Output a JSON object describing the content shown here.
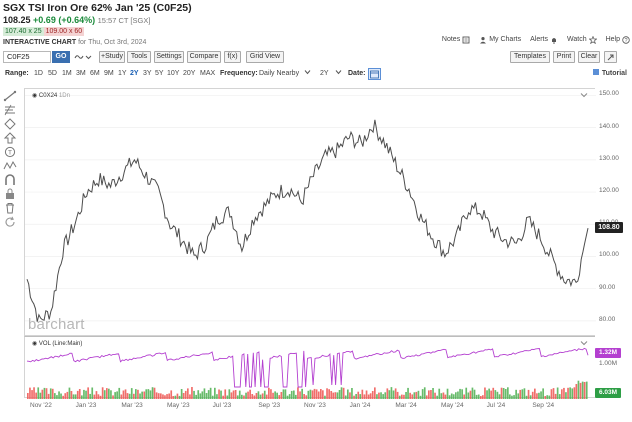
{
  "header": {
    "title": "SGX TSI Iron Ore 62% Jan '25 (C0F25)",
    "last": "108.25",
    "change": "+0.69 (+0.64%)",
    "time": "15:57 CT [SGX]",
    "bid": "107.40 x 25",
    "ask": "109.00 x 60",
    "chart_label": "INTERACTIVE CHART",
    "chart_date": "for Thu, Oct 3rd, 2024"
  },
  "top_links": [
    "Notes",
    "My Charts",
    "Alerts",
    "Watch",
    "Help"
  ],
  "toolbar": {
    "symbol_value": "C0F25",
    "go_label": "GO",
    "buttons": [
      "+Study",
      "Tools",
      "Settings",
      "Compare",
      "f(x)",
      "Grid View"
    ],
    "right_buttons": [
      "Templates",
      "Print",
      "Clear"
    ]
  },
  "range_bar": {
    "range_label": "Range:",
    "ranges": [
      "1D",
      "5D",
      "1M",
      "3M",
      "6M",
      "9M",
      "1Y",
      "2Y",
      "3Y",
      "5Y",
      "10Y",
      "20Y",
      "MAX"
    ],
    "active_range": "2Y",
    "frequency_label": "Frequency:",
    "frequency_value": "Daily Nearby",
    "period_value": "2Y",
    "date_label": "Date:",
    "tutorial_label": "Tutorial"
  },
  "chart": {
    "legend_symbol": "C0X24",
    "legend_timeframe": "1Dn",
    "watermark": "barchart",
    "last_price_label": "108.80",
    "colors": {
      "price_line": "#4d4d4d",
      "volume_line": "#b440d0",
      "last_badge": "#222222",
      "vol_up": "#4caf50",
      "vol_down": "#ef5350",
      "vol_badge": "#b440d0",
      "vol_badge2": "#2e9e46"
    }
  },
  "volume_panel": {
    "legend": "VOL (Line:Main)",
    "value_label": "1.32M",
    "axis_label": "1.00M",
    "last_volume_label": "6.03M"
  },
  "chart_data": {
    "type": "line",
    "x_ticks": [
      "Nov '22",
      "Jan '23",
      "Mar '23",
      "May '23",
      "Jul '23",
      "Sep '23",
      "Nov '23",
      "Jan '24",
      "Mar '24",
      "May '24",
      "Jul '24",
      "Sep '24"
    ],
    "y_ticks": [
      "150.00",
      "140.00",
      "130.00",
      "120.00",
      "110.00",
      "100.00",
      "90.00",
      "80.00"
    ],
    "ylim": [
      75,
      152
    ],
    "series": [
      {
        "points": [
          [
            "Oct '22",
            93
          ],
          [
            "Nov '22",
            80
          ],
          [
            "Nov '22",
            83
          ],
          [
            "Dec '22",
            102
          ],
          [
            "Dec '22",
            110
          ],
          [
            "Jan '23",
            120
          ],
          [
            "Jan '23",
            124
          ],
          [
            "Feb '23",
            122
          ],
          [
            "Feb '23",
            126
          ],
          [
            "Mar '23",
            130
          ],
          [
            "Mar '23",
            125
          ],
          [
            "Apr '23",
            120
          ],
          [
            "Apr '23",
            110
          ],
          [
            "May '23",
            105
          ],
          [
            "May '23",
            100
          ],
          [
            "Jun '23",
            104
          ],
          [
            "Jun '23",
            112
          ],
          [
            "Jul '23",
            114
          ],
          [
            "Jul '23",
            103
          ],
          [
            "Aug '23",
            112
          ],
          [
            "Aug '23",
            116
          ],
          [
            "Sep '23",
            120
          ],
          [
            "Sep '23",
            121
          ],
          [
            "Oct '23",
            117
          ],
          [
            "Oct '23",
            125
          ],
          [
            "Nov '23",
            131
          ],
          [
            "Nov '23",
            133
          ],
          [
            "Dec '23",
            137
          ],
          [
            "Dec '23",
            135
          ],
          [
            "Jan '24",
            141
          ],
          [
            "Jan '24",
            135
          ],
          [
            "Feb '24",
            128
          ],
          [
            "Feb '24",
            121
          ],
          [
            "Mar '24",
            112
          ],
          [
            "Mar '24",
            106
          ],
          [
            "Apr '24",
            101
          ],
          [
            "Apr '24",
            106
          ],
          [
            "May '24",
            115
          ],
          [
            "May '24",
            114
          ],
          [
            "Jun '24",
            108
          ],
          [
            "Jun '24",
            105
          ],
          [
            "Jul '24",
            104
          ],
          [
            "Jul '24",
            111
          ],
          [
            "Aug '24",
            106
          ],
          [
            "Aug '24",
            99
          ],
          [
            "Sep '24",
            93
          ],
          [
            "Sep '24",
            92
          ],
          [
            "Oct '24",
            108.8
          ]
        ]
      }
    ]
  }
}
